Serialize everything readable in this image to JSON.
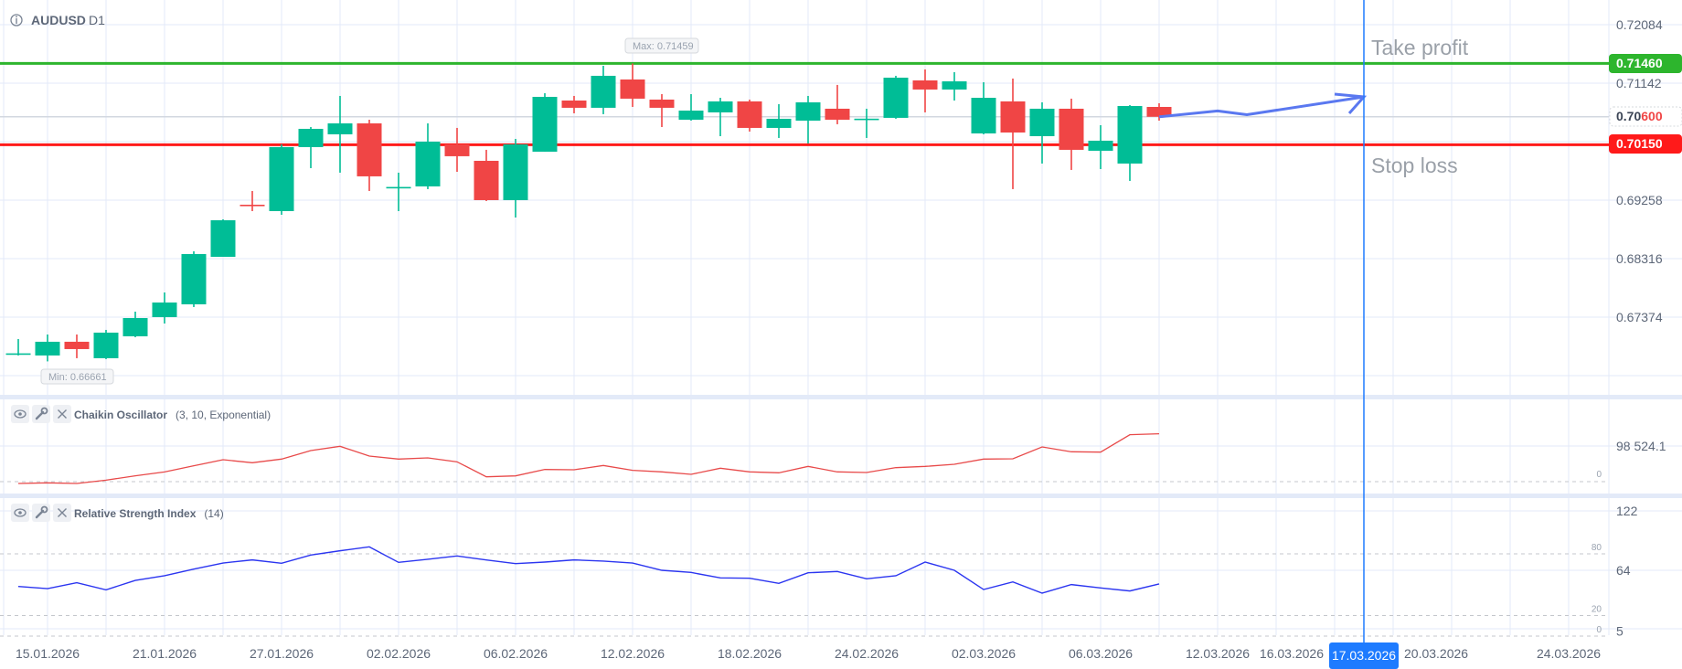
{
  "header": {
    "symbol": "AUDUSD",
    "timeframe": "D1",
    "info_icon": "info-circle-icon"
  },
  "colors": {
    "up": "#00bd96",
    "down": "#f04545",
    "take_profit": "#2db52d",
    "stop_loss": "#ff1a1a",
    "cursor": "#1e7bff",
    "arrow": "#5a78f0",
    "chaikin": "#e84a4a",
    "rsi": "#2b35f0",
    "grid": "#e3eaf8"
  },
  "price_axis": {
    "ticks": [
      {
        "label": "0.72084",
        "value": 0.72084
      },
      {
        "label": "0.71142",
        "value": 0.71142
      },
      {
        "label": "0.69258",
        "value": 0.69258
      },
      {
        "label": "0.68316",
        "value": 0.68316
      },
      {
        "label": "0.67374",
        "value": 0.67374
      }
    ]
  },
  "levels": {
    "take_profit": {
      "text": "Take profit",
      "price_label": "0.71460",
      "value": 0.7146
    },
    "stop_loss": {
      "text": "Stop loss",
      "price_label": "0.70150",
      "value": 0.7015
    },
    "current": {
      "prefix": "0.70",
      "suffix": "600",
      "value": 0.706
    }
  },
  "markers": {
    "max": "Max: 0.71459",
    "min": "Min: 0.66661"
  },
  "indicators": {
    "chaikin": {
      "name": "Chaikin Oscillator",
      "params": "(3, 10, Exponential)",
      "axis_label": "98 524.1",
      "axis_value": 98524.1,
      "zero_label": "0"
    },
    "rsi": {
      "name": "Relative Strength Index",
      "params": "(14)",
      "axis": [
        {
          "label": "122",
          "value": 122
        },
        {
          "label": "64",
          "value": 64
        },
        {
          "label": "5",
          "value": 5
        }
      ],
      "levels": [
        {
          "label": "80",
          "value": 80
        },
        {
          "label": "20",
          "value": 20
        },
        {
          "label": "0",
          "value": 0
        }
      ]
    }
  },
  "dates": {
    "labels": [
      {
        "text": "15.01.2026",
        "index": 1
      },
      {
        "text": "21.01.2026",
        "index": 5
      },
      {
        "text": "27.01.2026",
        "index": 9
      },
      {
        "text": "02.02.2026",
        "index": 13
      },
      {
        "text": "06.02.2026",
        "index": 17
      },
      {
        "text": "12.02.2026",
        "index": 21
      },
      {
        "text": "18.02.2026",
        "index": 25
      },
      {
        "text": "24.02.2026",
        "index": 29
      },
      {
        "text": "02.03.2026",
        "index": 33
      },
      {
        "text": "06.03.2026",
        "index": 37
      },
      {
        "text": "12.03.2026",
        "index": 41
      },
      {
        "text": "16.03.2026",
        "index": 45
      },
      {
        "text": "20.03.2026",
        "index": 49
      },
      {
        "text": "24.03.2026",
        "index": 53
      }
    ],
    "cursor": {
      "text": "17.03.2026",
      "index": 46
    }
  },
  "chart_data": {
    "type": "candlestick",
    "title": "AUDUSD D1",
    "ylim": [
      0.66123,
      0.72481
    ],
    "ohlc": [
      [
        0.66785,
        0.67021,
        0.66756,
        0.6679
      ],
      [
        0.66756,
        0.67094,
        0.66661,
        0.66977
      ],
      [
        0.66977,
        0.67094,
        0.66712,
        0.66859
      ],
      [
        0.66712,
        0.67168,
        0.66697,
        0.67124
      ],
      [
        0.67065,
        0.67462,
        0.6705,
        0.67359
      ],
      [
        0.67374,
        0.67771,
        0.67271,
        0.67609
      ],
      [
        0.6758,
        0.68434,
        0.67536,
        0.6839
      ],
      [
        0.68345,
        0.68949,
        0.68345,
        0.68934
      ],
      [
        0.69184,
        0.69405,
        0.69081,
        0.6917
      ],
      [
        0.69081,
        0.70156,
        0.69022,
        0.70112
      ],
      [
        0.70112,
        0.70435,
        0.69773,
        0.70406
      ],
      [
        0.70318,
        0.70936,
        0.697,
        0.70494
      ],
      [
        0.70494,
        0.70553,
        0.69405,
        0.69641
      ],
      [
        0.69464,
        0.697,
        0.69081,
        0.6947
      ],
      [
        0.69479,
        0.70494,
        0.69435,
        0.702
      ],
      [
        0.70156,
        0.70421,
        0.69714,
        0.69965
      ],
      [
        0.69891,
        0.70068,
        0.69243,
        0.69258
      ],
      [
        0.69258,
        0.70244,
        0.68978,
        0.70156
      ],
      [
        0.70038,
        0.7098,
        0.70038,
        0.70921
      ],
      [
        0.70862,
        0.70936,
        0.70656,
        0.70745
      ],
      [
        0.70745,
        0.71422,
        0.70642,
        0.7126
      ],
      [
        0.71201,
        0.71459,
        0.70759,
        0.70892
      ],
      [
        0.70877,
        0.70965,
        0.70435,
        0.70745
      ],
      [
        0.70553,
        0.70965,
        0.70538,
        0.707
      ],
      [
        0.70671,
        0.70906,
        0.70288,
        0.70848
      ],
      [
        0.70848,
        0.70877,
        0.70362,
        0.70421
      ],
      [
        0.70421,
        0.70803,
        0.70259,
        0.70568
      ],
      [
        0.70538,
        0.70936,
        0.70171,
        0.70833
      ],
      [
        0.7073,
        0.71113,
        0.7048,
        0.70553
      ],
      [
        0.70568,
        0.7073,
        0.70259,
        0.7057
      ],
      [
        0.70583,
        0.7126,
        0.70568,
        0.7123
      ],
      [
        0.71186,
        0.71363,
        0.70671,
        0.71039
      ],
      [
        0.71039,
        0.71319,
        0.70862,
        0.71171
      ],
      [
        0.70332,
        0.71157,
        0.70318,
        0.70906
      ],
      [
        0.70848,
        0.71216,
        0.69435,
        0.70347
      ],
      [
        0.70288,
        0.70833,
        0.69847,
        0.7073
      ],
      [
        0.7073,
        0.70892,
        0.69744,
        0.70068
      ],
      [
        0.70053,
        0.70465,
        0.69758,
        0.70215
      ],
      [
        0.69847,
        0.70789,
        0.69567,
        0.70774
      ],
      [
        0.70759,
        0.70818,
        0.70538,
        0.706
      ]
    ],
    "chaikin": [
      -5053,
      -3368,
      -5053,
      4210,
      16000,
      26947,
      43789,
      60631,
      52210,
      62315,
      85894,
      97684,
      70736,
      62315,
      65684,
      54737,
      13474,
      16000,
      33684,
      32842,
      44631,
      31158,
      26947,
      20210,
      37052,
      26947,
      24421,
      42105,
      26947,
      25263,
      38737,
      42105,
      48000,
      62315,
      63158,
      96000,
      82526,
      81684,
      129684,
      132210
    ],
    "rsi": [
      48.3,
      46.2,
      51.9,
      45.0,
      54.2,
      58.7,
      65.2,
      71.1,
      74.1,
      70.8,
      78.8,
      83.0,
      86.8,
      71.7,
      74.7,
      77.9,
      74.1,
      70.5,
      72.0,
      74.1,
      72.9,
      71.1,
      64.0,
      61.9,
      56.6,
      56.3,
      51.3,
      61.6,
      62.8,
      55.7,
      58.7,
      72.0,
      64.0,
      45.3,
      52.7,
      41.8,
      50.1,
      46.8,
      43.9,
      50.7
    ],
    "projection_arrow": [
      [
        39,
        0.706
      ],
      [
        41,
        0.70695
      ],
      [
        42,
        0.70634
      ],
      [
        46,
        0.70921
      ]
    ]
  }
}
